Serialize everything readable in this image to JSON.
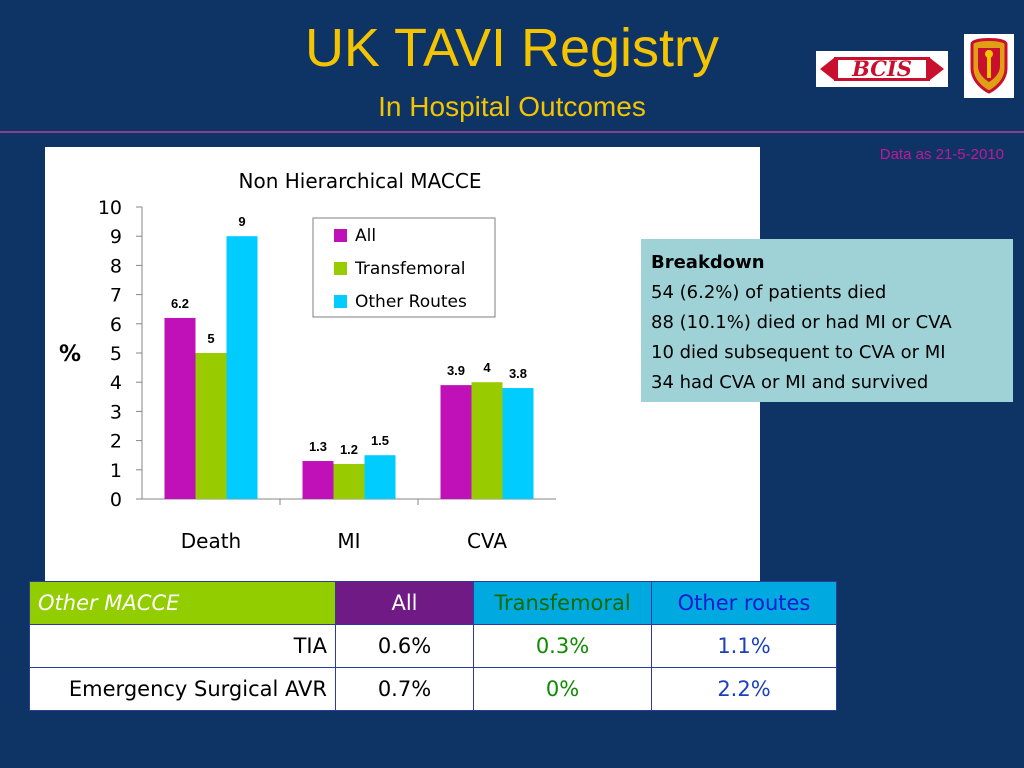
{
  "header": {
    "title": "UK TAVI Registry",
    "subtitle": "In Hospital Outcomes",
    "data_as": "Data as 21-5-2010",
    "logos": [
      "BCIS",
      "crest"
    ]
  },
  "breakdown": {
    "heading": "Breakdown",
    "lines": [
      "54 (6.2%) of patients died",
      "88 (10.1%) died or had MI or CVA",
      "10 died subsequent to CVA or MI",
      "34 had CVA or MI and survived"
    ]
  },
  "chart_data": {
    "type": "bar",
    "title": "Non Hierarchical MACCE",
    "ylabel": "%",
    "xlabel": "",
    "categories": [
      "Death",
      "MI",
      "CVA"
    ],
    "ylim": [
      0,
      10
    ],
    "yticks": [
      0,
      1,
      2,
      3,
      4,
      5,
      6,
      7,
      8,
      9,
      10
    ],
    "grid": false,
    "legend_position": "top-right",
    "series": [
      {
        "name": "All",
        "values": [
          6.2,
          1.3,
          3.9
        ],
        "color": "#c010b8",
        "labels": [
          "6.2",
          "1.3",
          "3.9"
        ]
      },
      {
        "name": "Transfemoral",
        "values": [
          5,
          1.2,
          4
        ],
        "color": "#99cc00",
        "labels": [
          "5",
          "1.2",
          "4"
        ]
      },
      {
        "name": "Other Routes",
        "values": [
          9,
          1.5,
          3.8
        ],
        "color": "#00ccff",
        "labels": [
          "9",
          "1.5",
          "3.8"
        ]
      }
    ]
  },
  "table": {
    "header": {
      "label": "Other MACCE",
      "all": "All",
      "transfemoral": "Transfemoral",
      "other": "Other routes"
    },
    "rows": [
      {
        "label": "TIA",
        "all": "0.6%",
        "transfemoral": "0.3%",
        "other": "1.1%"
      },
      {
        "label": "Emergency Surgical AVR",
        "all": "0.7%",
        "transfemoral": "0%",
        "other": "2.2%"
      }
    ]
  },
  "colors": {
    "background": "#0e3466",
    "title": "#f5c400",
    "rule": "#8a3f8e",
    "data_as": "#c0179a",
    "breakdown_bg": "#9fd2d6"
  }
}
